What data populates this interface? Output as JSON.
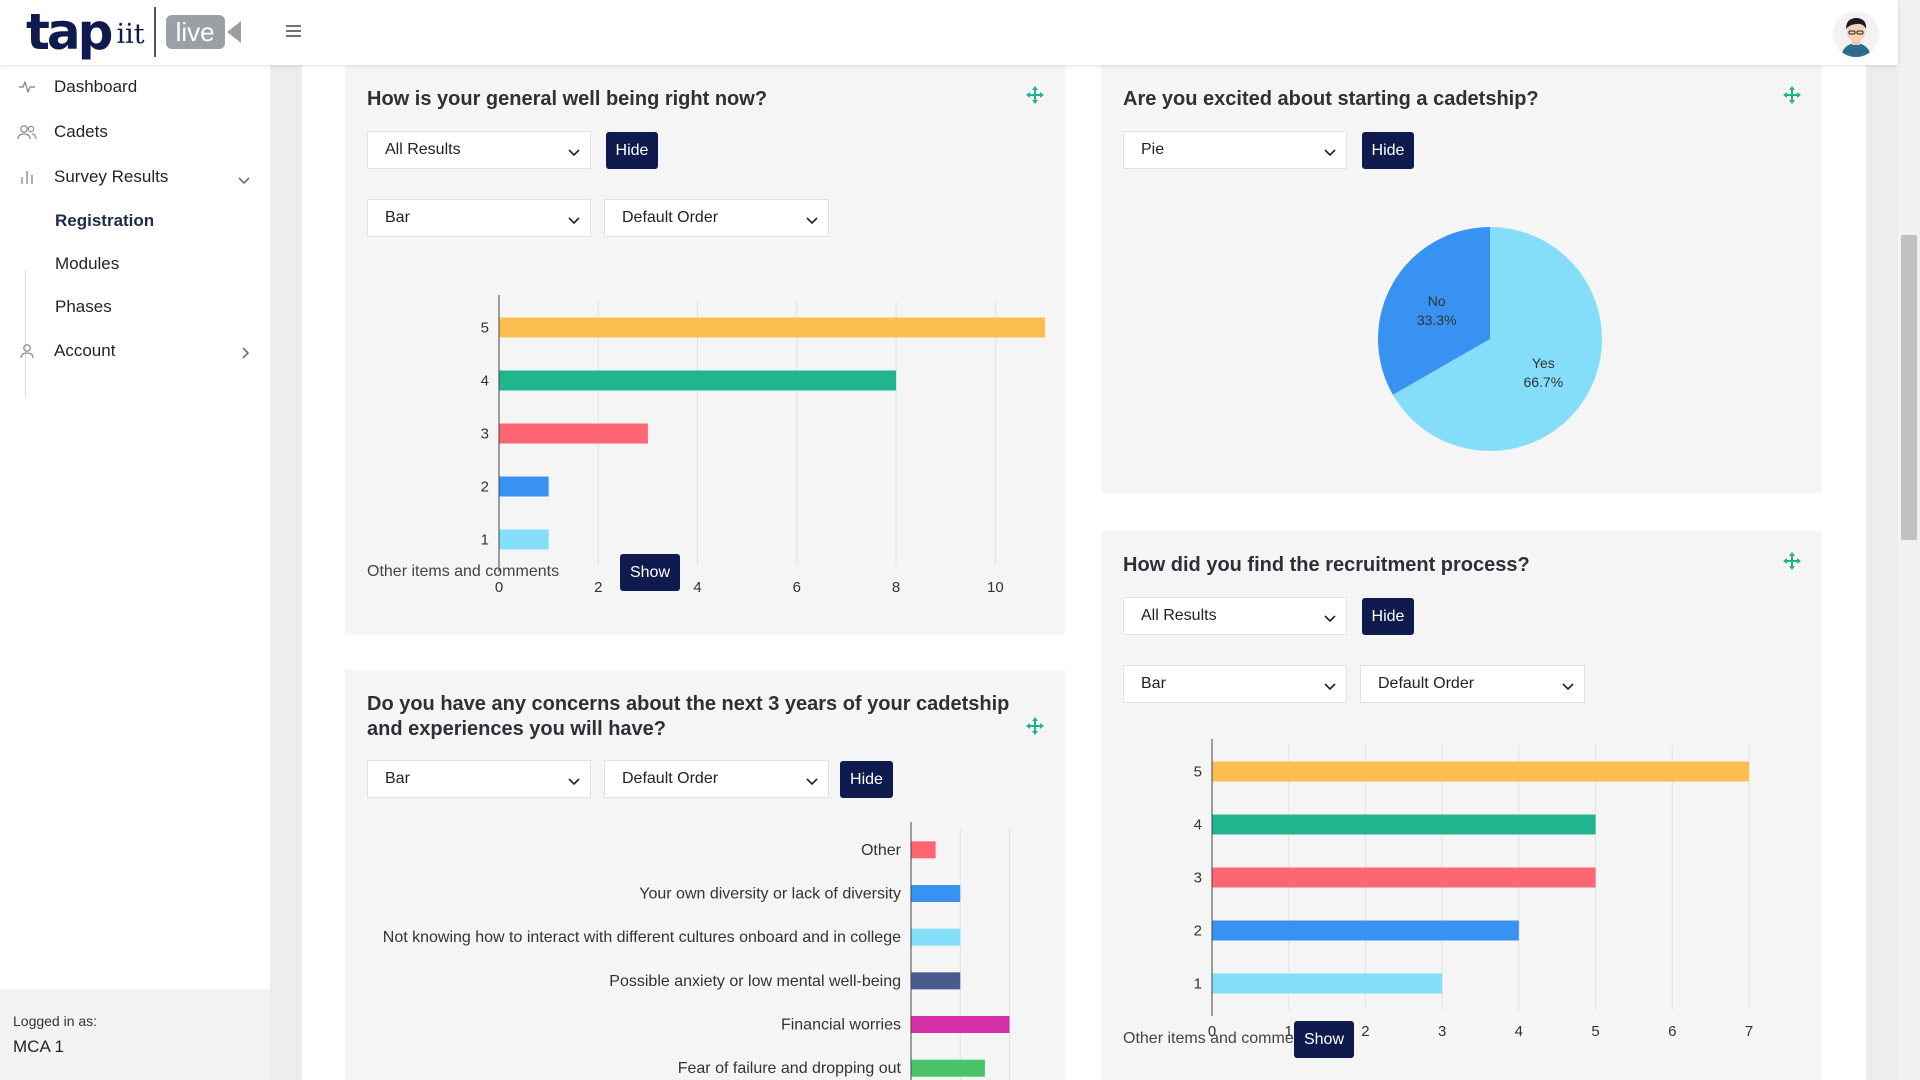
{
  "header": {
    "logo": {
      "tap": "tap",
      "iit": "iit",
      "live": "live"
    },
    "menu_icon": "hamburger-icon",
    "avatar": "user-avatar"
  },
  "sidebar": {
    "items": [
      {
        "label": "Dashboard",
        "icon": "activity-icon"
      },
      {
        "label": "Cadets",
        "icon": "users-icon"
      },
      {
        "label": "Survey Results",
        "icon": "bar-chart-icon"
      },
      {
        "label": "Account",
        "icon": "user-icon"
      }
    ],
    "sub_items": [
      {
        "label": "Registration",
        "active": true
      },
      {
        "label": "Modules"
      },
      {
        "label": "Phases"
      }
    ],
    "footer": {
      "label": "Logged in as:",
      "user": "MCA 1"
    }
  },
  "colors": {
    "primary": "#0f1a4f",
    "yellow": "#fbbf4f",
    "teal": "#21b58f",
    "red": "#fd6672",
    "blue": "#3792f1",
    "light_blue": "#84def9",
    "navy": "#4a5a8f",
    "magenta": "#d530a5",
    "green": "#4ac46a",
    "move": "#22b38e"
  },
  "cards": {
    "wellbeing": {
      "title": "How is your general well being right now?",
      "filter": "All Results",
      "hide": "Hide",
      "chart_type": "Bar",
      "order": "Default Order",
      "other_label": "Other items and comments",
      "show": "Show"
    },
    "concerns": {
      "title": "Do you have any concerns about the next 3 years of your cadetship and experiences you will have?",
      "chart_type": "Bar",
      "order": "Default Order",
      "hide": "Hide"
    },
    "excited": {
      "title": "Are you excited about starting a cadetship?",
      "chart_type": "Pie",
      "hide": "Hide"
    },
    "recruitment": {
      "title": "How did you find the recruitment process?",
      "filter": "All Results",
      "hide": "Hide",
      "chart_type": "Bar",
      "order": "Default Order",
      "other_label": "Other items and comments",
      "show": "Show"
    }
  },
  "chart_data": [
    {
      "id": "wellbeing",
      "type": "bar",
      "orientation": "horizontal",
      "categories": [
        "5",
        "4",
        "3",
        "2",
        "1"
      ],
      "values": [
        11,
        8,
        3,
        1,
        1
      ],
      "colors": [
        "#fbbf4f",
        "#21b58f",
        "#fd6672",
        "#3792f1",
        "#84def9"
      ],
      "xlim": [
        0,
        11
      ],
      "xticks": [
        "0",
        "2",
        "4",
        "6",
        "8",
        "10"
      ]
    },
    {
      "id": "excited",
      "type": "pie",
      "slices": [
        {
          "label": "Yes",
          "pct_label": "66.7%",
          "value": 66.7,
          "color": "#84def9"
        },
        {
          "label": "No",
          "pct_label": "33.3%",
          "value": 33.3,
          "color": "#3792f1"
        }
      ]
    },
    {
      "id": "recruitment",
      "type": "bar",
      "orientation": "horizontal",
      "categories": [
        "5",
        "4",
        "3",
        "2",
        "1"
      ],
      "values": [
        7,
        5,
        5,
        4,
        3
      ],
      "colors": [
        "#fbbf4f",
        "#21b58f",
        "#fd6672",
        "#3792f1",
        "#84def9"
      ],
      "xlim": [
        0,
        7
      ],
      "xticks": [
        "0",
        "1",
        "2",
        "3",
        "4",
        "5",
        "6",
        "7"
      ]
    },
    {
      "id": "concerns",
      "type": "bar",
      "orientation": "horizontal",
      "categories": [
        "Other",
        "Your own diversity or lack of diversity",
        "Not knowing how to interact with different cultures onboard and in college",
        "Possible anxiety or low mental well-being",
        "Financial worries",
        "Fear of failure and dropping out"
      ],
      "values": [
        1,
        2,
        2,
        2,
        4,
        3
      ],
      "colors": [
        "#fd6672",
        "#3792f1",
        "#84def9",
        "#4a5a8f",
        "#d530a5",
        "#4ac46a"
      ],
      "xlim": [
        0,
        8
      ]
    }
  ]
}
